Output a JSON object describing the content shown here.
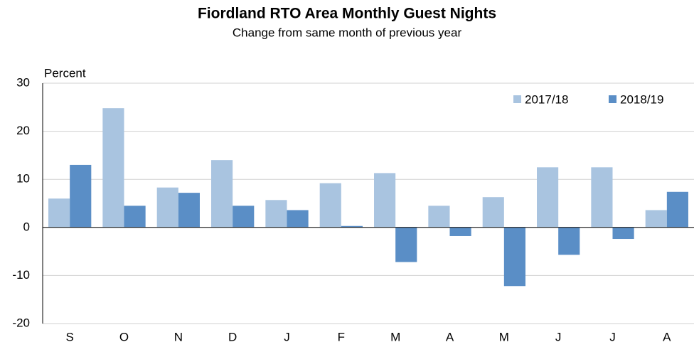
{
  "chart_data": {
    "type": "bar",
    "title": "Fiordland RTO Area Monthly Guest Nights",
    "subtitle": "Change from same month of previous year",
    "y_label": "Percent",
    "categories": [
      "S",
      "O",
      "N",
      "D",
      "J",
      "F",
      "M",
      "A",
      "M",
      "J",
      "J",
      "A"
    ],
    "series": [
      {
        "name": "2017/18",
        "color": "#a9c4e0",
        "values": [
          6,
          24.8,
          8.3,
          14,
          5.7,
          9.2,
          11.3,
          4.5,
          6.3,
          12.5,
          12.5,
          3.6
        ]
      },
      {
        "name": "2018/19",
        "color": "#5a8ec6",
        "values": [
          13,
          4.5,
          7.2,
          4.5,
          3.6,
          0.3,
          -7.2,
          -1.8,
          -12.2,
          -5.7,
          -2.4,
          7.4
        ]
      }
    ],
    "ylim": [
      -20,
      30
    ],
    "yticks": [
      -20,
      -10,
      0,
      10,
      20,
      30
    ],
    "grid": true,
    "legend": "upper right"
  }
}
